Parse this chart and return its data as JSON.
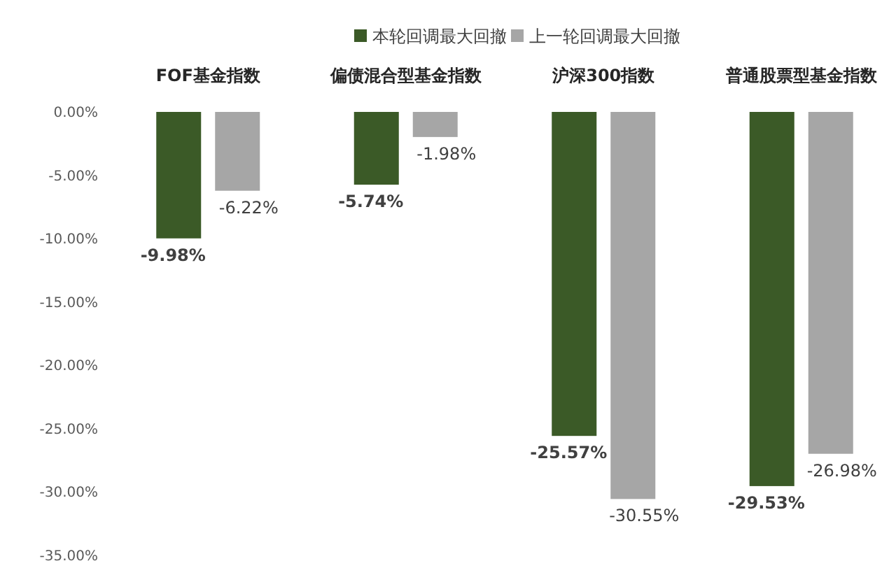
{
  "chart_data": {
    "type": "bar",
    "categories": [
      "FOF基金指数",
      "偏债混合型基金指数",
      "沪深300指数",
      "普通股票型基金指数"
    ],
    "series": [
      {
        "name": "本轮回调最大回撤",
        "color": "#3b5a27",
        "values": [
          -9.98,
          -5.74,
          -25.57,
          -29.53
        ],
        "value_labels": [
          "-9.98%",
          "-5.74%",
          "-25.57%",
          "-29.53%"
        ]
      },
      {
        "name": "上一轮回调最大回撤",
        "color": "#a6a6a6",
        "values": [
          -6.22,
          -1.98,
          -30.55,
          -26.98
        ],
        "value_labels": [
          "-6.22%",
          "-1.98%",
          "-30.55%",
          "-26.98%"
        ]
      }
    ],
    "ylim": [
      -35,
      0
    ],
    "yticks": [
      {
        "value": 0,
        "label": "0.00%"
      },
      {
        "value": -5,
        "label": "-5.00%"
      },
      {
        "value": -10,
        "label": "-10.00%"
      },
      {
        "value": -15,
        "label": "-15.00%"
      },
      {
        "value": -20,
        "label": "-20.00%"
      },
      {
        "value": -25,
        "label": "-25.00%"
      },
      {
        "value": -30,
        "label": "-30.00%"
      },
      {
        "value": -35,
        "label": "-35.00%"
      }
    ],
    "grid": false,
    "legend": "top"
  }
}
